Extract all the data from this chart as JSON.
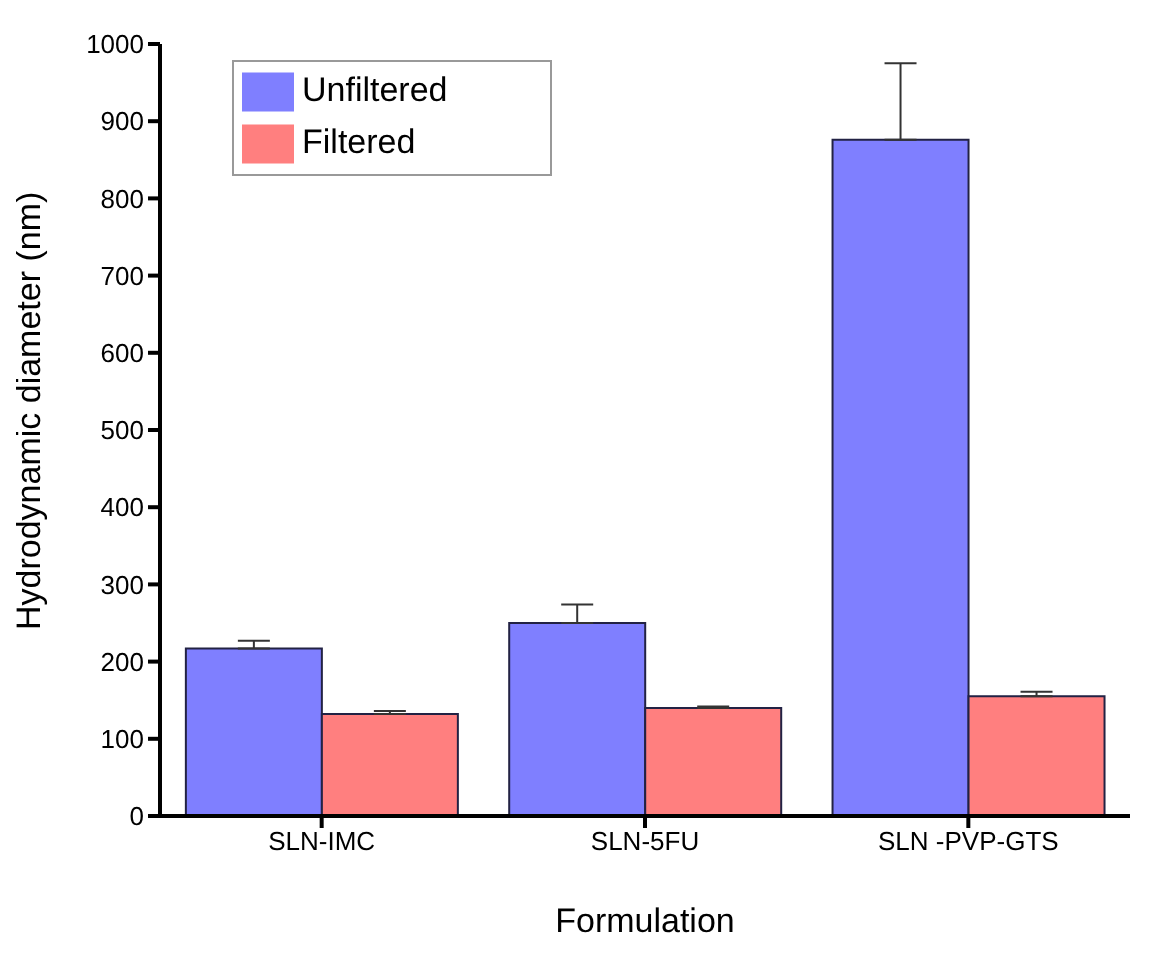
{
  "chart_data": {
    "type": "bar",
    "xlabel": "Formulation",
    "ylabel": "Hydrodynamic diameter (nm)",
    "categories": [
      "SLN-IMC",
      "SLN-5FU",
      "SLN -PVP-GTS"
    ],
    "series": [
      {
        "name": "Unfiltered",
        "color": "#7f7fff",
        "values": [
          217,
          250,
          876
        ],
        "errors": [
          [
            217,
            227
          ],
          [
            250,
            274
          ],
          [
            876,
            975
          ]
        ]
      },
      {
        "name": "Filtered",
        "color": "#ff7f7f",
        "values": [
          132,
          140,
          155
        ],
        "errors": [
          [
            132,
            136
          ],
          [
            140,
            142
          ],
          [
            155,
            161
          ]
        ]
      }
    ],
    "ylim": [
      0,
      1000
    ],
    "yticks": [
      0,
      100,
      200,
      300,
      400,
      500,
      600,
      700,
      800,
      900,
      1000
    ],
    "grid": false,
    "legend": "top left"
  }
}
